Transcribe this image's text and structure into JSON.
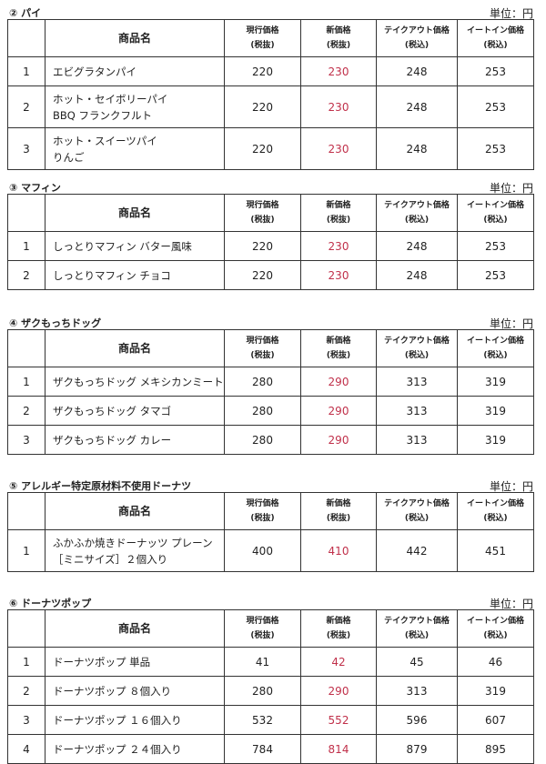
{
  "unit_label": "単位：円",
  "headers": {
    "no": "",
    "name": "商品名",
    "current": [
      "現行価格",
      "(税抜)"
    ],
    "new": [
      "新価格",
      "(税抜)"
    ],
    "takeout": [
      "テイクアウト価格",
      "(税込)"
    ],
    "eatin": [
      "イートイン価格",
      "(税込)"
    ]
  },
  "colors": {
    "new_price": "#c0304a"
  },
  "sections": [
    {
      "title": "② パイ",
      "rows": [
        {
          "no": "1",
          "name": [
            "エビグラタンパイ"
          ],
          "current": "220",
          "new": "230",
          "takeout": "248",
          "eatin": "253"
        },
        {
          "no": "2",
          "name": [
            "ホット・セイボリーパイ",
            "BBQ フランクフルト"
          ],
          "current": "220",
          "new": "230",
          "takeout": "248",
          "eatin": "253"
        },
        {
          "no": "3",
          "name": [
            "ホット・スイーツパイ",
            "りんご"
          ],
          "current": "220",
          "new": "230",
          "takeout": "248",
          "eatin": "253"
        }
      ]
    },
    {
      "title": "③ マフィン",
      "rows": [
        {
          "no": "1",
          "name": [
            "しっとりマフィン バター風味"
          ],
          "current": "220",
          "new": "230",
          "takeout": "248",
          "eatin": "253"
        },
        {
          "no": "2",
          "name": [
            "しっとりマフィン チョコ"
          ],
          "current": "220",
          "new": "230",
          "takeout": "248",
          "eatin": "253"
        }
      ]
    },
    {
      "title": "④ ザクもっちドッグ",
      "rows": [
        {
          "no": "1",
          "name": [
            "ザクもっちドッグ メキシカンミート"
          ],
          "current": "280",
          "new": "290",
          "takeout": "313",
          "eatin": "319"
        },
        {
          "no": "2",
          "name": [
            "ザクもっちドッグ タマゴ"
          ],
          "current": "280",
          "new": "290",
          "takeout": "313",
          "eatin": "319"
        },
        {
          "no": "3",
          "name": [
            "ザクもっちドッグ カレー"
          ],
          "current": "280",
          "new": "290",
          "takeout": "313",
          "eatin": "319"
        }
      ]
    },
    {
      "title": "⑤ アレルギー特定原材料不使用ドーナツ",
      "rows": [
        {
          "no": "1",
          "name": [
            "ふかふか焼きドーナッツ プレーン",
            "［ミニサイズ］２個入り"
          ],
          "current": "400",
          "new": "410",
          "takeout": "442",
          "eatin": "451"
        }
      ]
    },
    {
      "title": "⑥ ドーナツポップ",
      "rows": [
        {
          "no": "1",
          "name": [
            "ドーナツポップ 単品"
          ],
          "current": "41",
          "new": "42",
          "takeout": "45",
          "eatin": "46"
        },
        {
          "no": "2",
          "name": [
            "ドーナツポップ ８個入り"
          ],
          "current": "280",
          "new": "290",
          "takeout": "313",
          "eatin": "319"
        },
        {
          "no": "3",
          "name": [
            "ドーナツポップ １６個入り"
          ],
          "current": "532",
          "new": "552",
          "takeout": "596",
          "eatin": "607"
        },
        {
          "no": "4",
          "name": [
            "ドーナツポップ ２４個入り"
          ],
          "current": "784",
          "new": "814",
          "takeout": "879",
          "eatin": "895"
        }
      ]
    }
  ]
}
